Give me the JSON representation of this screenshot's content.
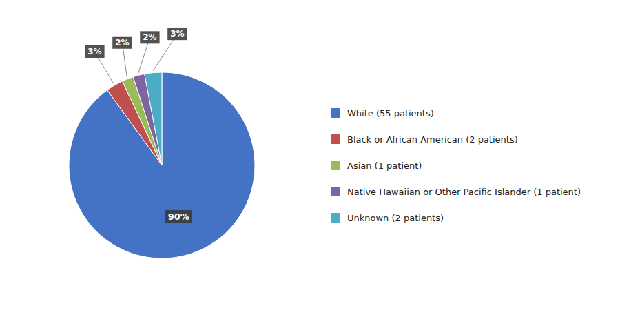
{
  "chart_data": {
    "type": "pie",
    "categories": [
      "White (55 patients)",
      "Black or African American (2 patients)",
      "Asian (1 patient)",
      "Native Hawaiian or Other Pacific Islander (1 patient)",
      "Unknown (2 patients)"
    ],
    "values": [
      90,
      3,
      2,
      2,
      3
    ],
    "value_labels": [
      "90%",
      "3%",
      "2%",
      "2%",
      "3%"
    ],
    "colors": [
      "#4472C4",
      "#C0504D",
      "#9BBB59",
      "#8064A2",
      "#4BACC6"
    ],
    "data_labels": true,
    "legend": "right"
  }
}
